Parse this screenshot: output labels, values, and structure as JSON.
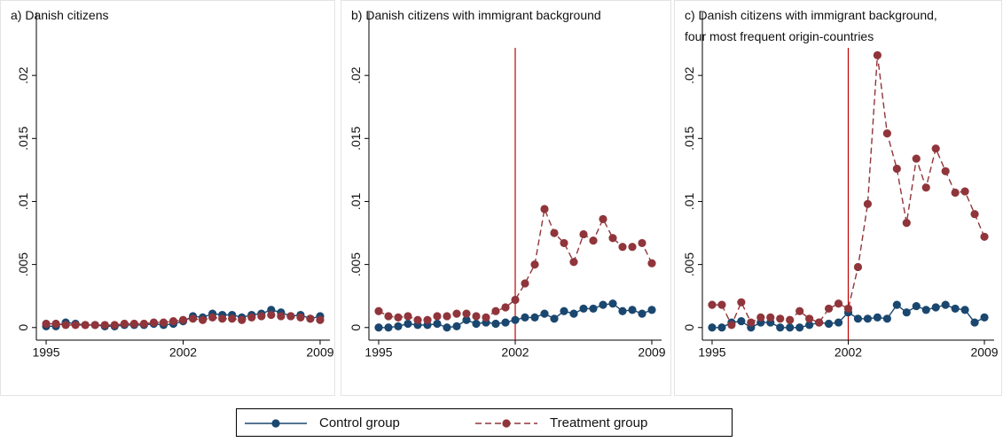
{
  "chart_data": [
    {
      "type": "line",
      "title": [
        "a)  Danish citizens"
      ],
      "x": [
        1995,
        1995.5,
        1996,
        1996.5,
        1997,
        1997.5,
        1998,
        1998.5,
        1999,
        1999.5,
        2000,
        2000.5,
        2001,
        2001.5,
        2002,
        2002.5,
        2003,
        2003.5,
        2004,
        2004.5,
        2005,
        2005.5,
        2006,
        2006.5,
        2007,
        2007.5,
        2008,
        2008.5,
        2009
      ],
      "xlim": [
        1994.5,
        2009.5
      ],
      "xticks": [
        1995,
        2002,
        2009
      ],
      "ylim": [
        -0.001,
        0.025
      ],
      "yticks": [
        0,
        {
          "value": 0.005,
          "label": ".005"
        },
        {
          "value": 0.01,
          "label": ".01"
        },
        {
          "value": 0.015,
          "label": ".015"
        },
        {
          "value": 0.02,
          "label": ".02"
        }
      ],
      "series": [
        {
          "name": "Control group",
          "color": "#1a476f",
          "values": [
            0.0001,
            0.0001,
            0.0004,
            0.0003,
            0.0002,
            0.0002,
            0.0001,
            0.0001,
            0.0002,
            0.0002,
            0.0002,
            0.0003,
            0.0002,
            0.0003,
            0.0005,
            0.0009,
            0.0008,
            0.0011,
            0.001,
            0.001,
            0.0008,
            0.001,
            0.0011,
            0.0014,
            0.0012,
            0.0009,
            0.001,
            0.0007,
            0.0009
          ]
        },
        {
          "name": "Treatment group",
          "color": "#90353b",
          "dashed": true,
          "values": [
            0.0003,
            0.0003,
            0.0002,
            0.0002,
            0.0002,
            0.0002,
            0.0002,
            0.0002,
            0.0003,
            0.0003,
            0.0003,
            0.0004,
            0.0004,
            0.0005,
            0.0006,
            0.0007,
            0.0006,
            0.0008,
            0.0007,
            0.0007,
            0.0006,
            0.0008,
            0.0009,
            0.001,
            0.0009,
            0.0009,
            0.0008,
            0.0007,
            0.0006
          ]
        }
      ]
    },
    {
      "type": "line",
      "title": [
        "b)  Danish citizens with immigrant background"
      ],
      "x": [
        1995,
        1995.5,
        1996,
        1996.5,
        1997,
        1997.5,
        1998,
        1998.5,
        1999,
        1999.5,
        2000,
        2000.5,
        2001,
        2001.5,
        2002,
        2002.5,
        2003,
        2003.5,
        2004,
        2004.5,
        2005,
        2005.5,
        2006,
        2006.5,
        2007,
        2007.5,
        2008,
        2008.5,
        2009
      ],
      "xlim": [
        1994.5,
        2009.5
      ],
      "xticks": [
        1995,
        2002,
        2009
      ],
      "vline": 2002,
      "ylim": [
        -0.001,
        0.025
      ],
      "yticks": [
        0,
        {
          "value": 0.005,
          "label": ".005"
        },
        {
          "value": 0.01,
          "label": ".01"
        },
        {
          "value": 0.015,
          "label": ".015"
        },
        {
          "value": 0.02,
          "label": ".02"
        }
      ],
      "series": [
        {
          "name": "Control group",
          "color": "#1a476f",
          "values": [
            0.0,
            0.0,
            0.0001,
            0.0003,
            0.0002,
            0.0002,
            0.0003,
            0.0,
            0.0001,
            0.0006,
            0.0003,
            0.0004,
            0.0003,
            0.0004,
            0.0006,
            0.0008,
            0.0008,
            0.0011,
            0.0007,
            0.0013,
            0.0011,
            0.0015,
            0.0015,
            0.0018,
            0.0019,
            0.0013,
            0.0014,
            0.0011,
            0.0014
          ]
        },
        {
          "name": "Treatment group",
          "color": "#90353b",
          "dashed": true,
          "values": [
            0.0013,
            0.0009,
            0.0008,
            0.0009,
            0.0006,
            0.0006,
            0.0009,
            0.0009,
            0.0011,
            0.0011,
            0.0009,
            0.0008,
            0.0013,
            0.0016,
            0.0022,
            0.0035,
            0.005,
            0.0094,
            0.0075,
            0.0067,
            0.0052,
            0.0074,
            0.0069,
            0.0086,
            0.0071,
            0.0064,
            0.0064,
            0.0067,
            0.0051
          ]
        }
      ]
    },
    {
      "type": "line",
      "title": [
        "c)  Danish citizens with immigrant background,",
        "four most frequent  origin-countries"
      ],
      "x": [
        1995,
        1995.5,
        1996,
        1996.5,
        1997,
        1997.5,
        1998,
        1998.5,
        1999,
        1999.5,
        2000,
        2000.5,
        2001,
        2001.5,
        2002,
        2002.5,
        2003,
        2003.5,
        2004,
        2004.5,
        2005,
        2005.5,
        2006,
        2006.5,
        2007,
        2007.5,
        2008,
        2008.5,
        2009
      ],
      "xlim": [
        1994.5,
        2009.5
      ],
      "xticks": [
        1995,
        2002,
        2009
      ],
      "vline": 2002,
      "ylim": [
        -0.001,
        0.025
      ],
      "yticks": [
        0,
        {
          "value": 0.005,
          "label": ".005"
        },
        {
          "value": 0.01,
          "label": ".01"
        },
        {
          "value": 0.015,
          "label": ".015"
        },
        {
          "value": 0.02,
          "label": ".02"
        }
      ],
      "series": [
        {
          "name": "Control group",
          "color": "#1a476f",
          "values": [
            0.0,
            0.0,
            0.0004,
            0.0005,
            0.0,
            0.0004,
            0.0004,
            0.0,
            0.0,
            0.0,
            0.0002,
            0.0004,
            0.0003,
            0.0004,
            0.0012,
            0.0007,
            0.0007,
            0.0008,
            0.0007,
            0.0018,
            0.0012,
            0.0017,
            0.0014,
            0.0016,
            0.0018,
            0.0015,
            0.0014,
            0.0004,
            0.0008
          ]
        },
        {
          "name": "Treatment group",
          "color": "#90353b",
          "dashed": true,
          "values": [
            0.0018,
            0.0018,
            0.0002,
            0.002,
            0.0004,
            0.0008,
            0.0008,
            0.0007,
            0.0006,
            0.0013,
            0.0007,
            0.0004,
            0.0015,
            0.0019,
            0.0015,
            0.0048,
            0.0098,
            0.0216,
            0.0154,
            0.0126,
            0.0083,
            0.0134,
            0.0111,
            0.0142,
            0.0124,
            0.0107,
            0.0108,
            0.009,
            0.0072
          ]
        }
      ]
    }
  ]
}
